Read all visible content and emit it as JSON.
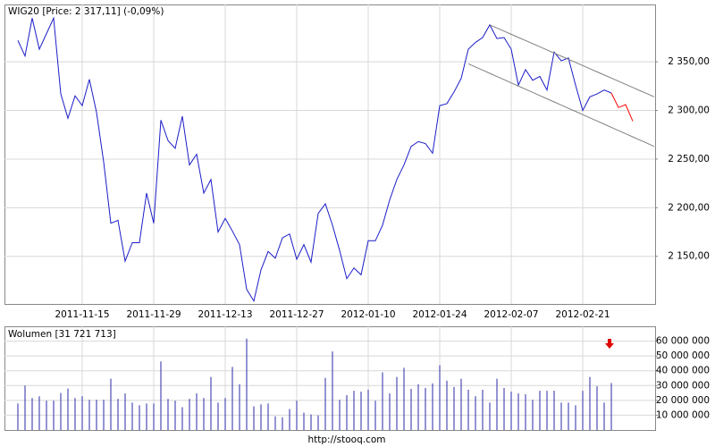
{
  "chart_data": [
    {
      "type": "line",
      "title": "WIG20 [Price: 2 317,11] (-0,09%)",
      "categories": [
        null,
        null,
        null,
        null,
        null,
        null,
        null,
        null,
        null,
        "2011-11-15",
        null,
        null,
        null,
        null,
        null,
        null,
        null,
        null,
        null,
        "2011-11-29",
        null,
        null,
        null,
        null,
        null,
        null,
        null,
        null,
        null,
        "2011-12-13",
        null,
        null,
        null,
        null,
        null,
        null,
        null,
        null,
        null,
        "2011-12-27",
        null,
        null,
        null,
        null,
        null,
        null,
        null,
        null,
        null,
        "2012-01-10",
        null,
        null,
        null,
        null,
        null,
        null,
        null,
        null,
        null,
        "2012-01-24",
        null,
        null,
        null,
        null,
        null,
        null,
        null,
        null,
        null,
        "2012-02-07",
        null,
        null,
        null,
        null,
        null,
        null,
        null,
        null,
        null,
        "2012-02-21",
        null,
        null,
        null,
        null,
        null,
        null,
        null,
        null,
        null,
        null
      ],
      "series": [
        {
          "color": "#1c1cc8",
          "values": [
            2372,
            2356,
            2395,
            2363,
            2379,
            2395,
            2317,
            2292,
            2315,
            2305,
            2332,
            2298,
            2247,
            2184,
            2187,
            2145,
            2164,
            2164,
            2215,
            2184,
            2290,
            2269,
            2261,
            2294,
            2244,
            2255,
            2215,
            2229,
            2175,
            2189,
            2176,
            2162,
            2116,
            2104,
            2136,
            2155,
            2148,
            2169,
            2173,
            2147,
            2162,
            2144,
            2194,
            2204,
            2182,
            2156,
            2127,
            2138,
            2131,
            2166,
            2166,
            2182,
            2208,
            2229,
            2244,
            2263,
            2268,
            2266,
            2256,
            2305,
            2307,
            2319,
            2333,
            2363,
            2370,
            2375,
            2388,
            2374,
            2375,
            2363,
            2326,
            2342,
            2331,
            2335,
            2321,
            2360,
            2351,
            2354,
            2326,
            2300,
            2314,
            2317,
            2321,
            2318,
            null,
            null,
            null,
            null,
            null,
            null
          ]
        },
        {
          "color": "#ff0000",
          "values": [
            null,
            null,
            null,
            null,
            null,
            null,
            null,
            null,
            null,
            null,
            null,
            null,
            null,
            null,
            null,
            null,
            null,
            null,
            null,
            null,
            null,
            null,
            null,
            null,
            null,
            null,
            null,
            null,
            null,
            null,
            null,
            null,
            null,
            null,
            null,
            null,
            null,
            null,
            null,
            null,
            null,
            null,
            null,
            null,
            null,
            null,
            null,
            null,
            null,
            null,
            null,
            null,
            null,
            null,
            null,
            null,
            null,
            null,
            null,
            null,
            null,
            null,
            null,
            null,
            null,
            null,
            null,
            null,
            null,
            null,
            null,
            null,
            null,
            null,
            null,
            null,
            null,
            null,
            null,
            null,
            null,
            null,
            null,
            2318,
            2303,
            2306,
            2289,
            null,
            null,
            null
          ]
        },
        {
          "color": "#808080",
          "values": [
            null,
            null,
            null,
            null,
            null,
            null,
            null,
            null,
            null,
            null,
            null,
            null,
            null,
            null,
            null,
            null,
            null,
            null,
            null,
            null,
            null,
            null,
            null,
            null,
            null,
            null,
            null,
            null,
            null,
            null,
            null,
            null,
            null,
            null,
            null,
            null,
            null,
            null,
            null,
            null,
            null,
            null,
            null,
            null,
            null,
            null,
            null,
            null,
            null,
            null,
            null,
            null,
            null,
            null,
            null,
            null,
            null,
            null,
            null,
            null,
            null,
            null,
            null,
            null,
            null,
            null,
            2388,
            2384.8,
            2381.6,
            2378.3,
            2375.1,
            2371.9,
            2368.7,
            2365.5,
            2362.3,
            2359.0,
            2355.8,
            2352.6,
            2349.4,
            2346.2,
            2343.0,
            2339.7,
            2336.5,
            2333.3,
            2330.1,
            2326.9,
            2323.7,
            2320.4,
            2317.2,
            2314.0
          ]
        },
        {
          "color": "#808080",
          "values": [
            null,
            null,
            null,
            null,
            null,
            null,
            null,
            null,
            null,
            null,
            null,
            null,
            null,
            null,
            null,
            null,
            null,
            null,
            null,
            null,
            null,
            null,
            null,
            null,
            null,
            null,
            null,
            null,
            null,
            null,
            null,
            null,
            null,
            null,
            null,
            null,
            null,
            null,
            null,
            null,
            null,
            null,
            null,
            null,
            null,
            null,
            null,
            null,
            null,
            null,
            null,
            null,
            null,
            null,
            null,
            null,
            null,
            null,
            null,
            null,
            null,
            null,
            null,
            2348,
            2344.7,
            2341.5,
            2338.2,
            2334.9,
            2331.7,
            2328.4,
            2325.1,
            2321.8,
            2318.6,
            2315.3,
            2312.0,
            2308.8,
            2305.5,
            2302.2,
            2299.0,
            2295.7,
            2292.4,
            2289.2,
            2285.9,
            2282.6,
            2279.3,
            2276.1,
            2272.8,
            2269.5,
            2266.3,
            2263.0
          ]
        }
      ],
      "ylim": [
        2101,
        2409
      ],
      "yticks": [
        {
          "value": 2150,
          "label": "2 150,00"
        },
        {
          "value": 2200,
          "label": "2 200,00"
        },
        {
          "value": 2250,
          "label": "2 250,00"
        },
        {
          "value": 2300,
          "label": "2 300,00"
        },
        {
          "value": 2350,
          "label": "2 350,00"
        }
      ],
      "grid": true
    },
    {
      "type": "bar",
      "title": "Wolumen [31 721 713]",
      "color": "#2a2aa8",
      "values": [
        17900000,
        30000000,
        21600000,
        22800000,
        19800000,
        19800000,
        25000000,
        28000000,
        21600000,
        22800000,
        20400000,
        20400000,
        20400000,
        34600000,
        21000000,
        24700000,
        18500000,
        16700000,
        17900000,
        17900000,
        46300000,
        21000000,
        19800000,
        15400000,
        21000000,
        24700000,
        21600000,
        35800000,
        18500000,
        21600000,
        42600000,
        30900000,
        61700000,
        16000000,
        17300000,
        17900000,
        9300000,
        8600000,
        14200000,
        19800000,
        11700000,
        10500000,
        9900000,
        35200000,
        53000000,
        20400000,
        23500000,
        26500000,
        25900000,
        27200000,
        19800000,
        38900000,
        24700000,
        35800000,
        42000000,
        27800000,
        30900000,
        28400000,
        31500000,
        43800000,
        33300000,
        29000000,
        34600000,
        27200000,
        22800000,
        27200000,
        18500000,
        34600000,
        28400000,
        25900000,
        24700000,
        24100000,
        20400000,
        26500000,
        26500000,
        26500000,
        18500000,
        18500000,
        16700000,
        26500000,
        35800000,
        29600000,
        18500000,
        31721713
      ],
      "ylim": [
        0,
        70000000
      ],
      "yticks": [
        {
          "value": 10000000,
          "label": "10 000 000"
        },
        {
          "value": 20000000,
          "label": "20 000 000"
        },
        {
          "value": 30000000,
          "label": "30 000 000"
        },
        {
          "value": 40000000,
          "label": "40 000 000"
        },
        {
          "value": 50000000,
          "label": "50 000 000"
        },
        {
          "value": 60000000,
          "label": "60 000 000"
        }
      ],
      "grid": true
    }
  ],
  "footer": "http://stooq.com"
}
